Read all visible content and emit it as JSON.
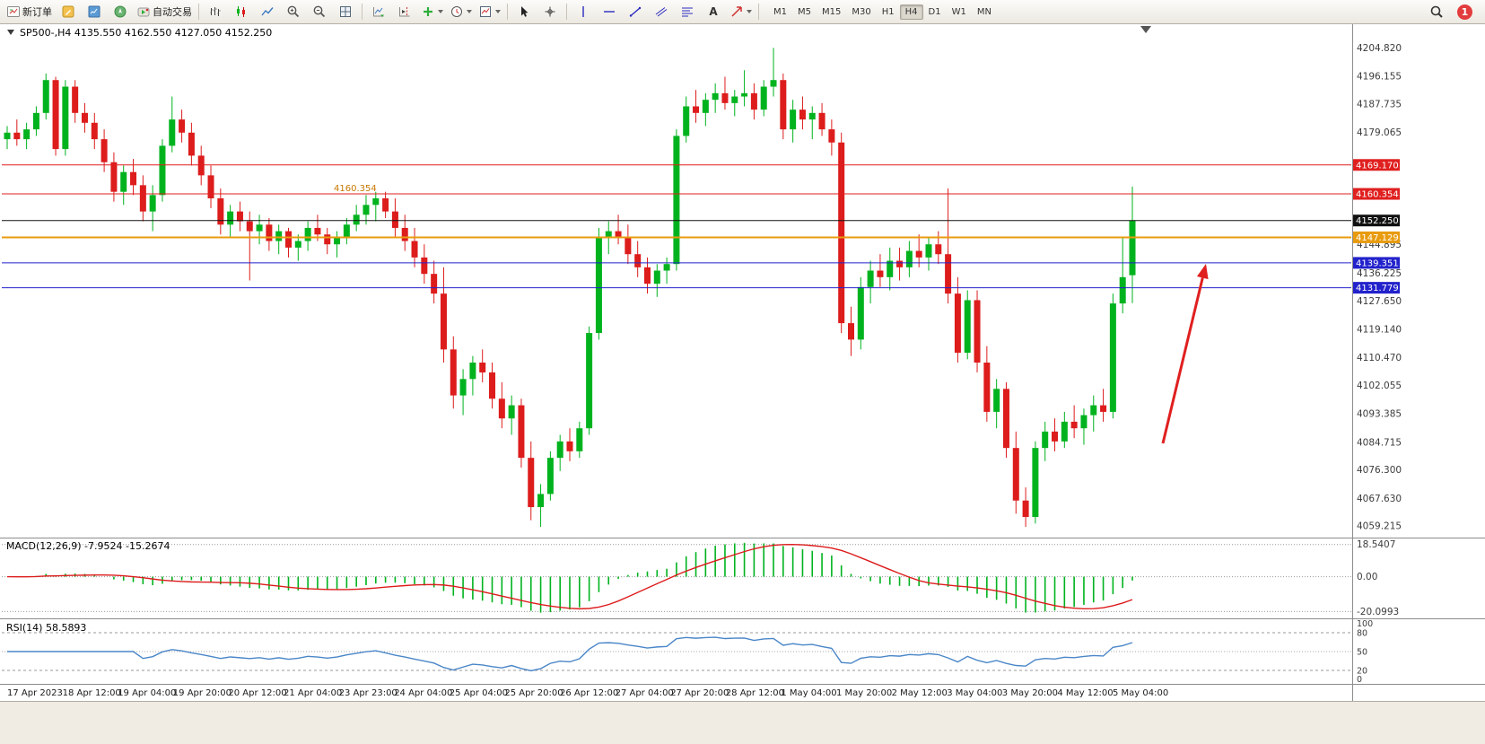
{
  "toolbar": {
    "new_order_label": "新订单",
    "autotrading_label": "自动交易",
    "text_tool_glyph": "A",
    "timeframes": [
      "M1",
      "M5",
      "M15",
      "M30",
      "H1",
      "H4",
      "D1",
      "W1",
      "MN"
    ],
    "active_timeframe": "H4",
    "notification_count": "1",
    "icons": {
      "new-order-icon": "order-ticket",
      "metaeditor-icon": "yellow-editor-square",
      "market-watch-icon": "blue-quotes-square",
      "navigator-icon": "green-compass-circle",
      "autotrading-icon": "green-play",
      "bars-chart-icon": "ohlc-bars",
      "candlestick-chart-icon": "candles",
      "line-chart-icon": "zigzag-line",
      "zoom-in-icon": "magnifier-plus",
      "zoom-out-icon": "magnifier-minus",
      "tile-windows-icon": "window-grid",
      "auto-scroll-icon": "chart-scroll",
      "chart-shift-icon": "chart-shift",
      "indicators-icon": "green-plus",
      "clock-icon": "clock",
      "template-icon": "chart-template",
      "cursor-icon": "pointer-arrow",
      "crosshair-icon": "crosshair",
      "vertical-line-icon": "vline",
      "horizontal-line-icon": "hline",
      "trendline-icon": "diagonal-line",
      "channel-icon": "parallel-lines",
      "fibonacci-icon": "fibo-levels",
      "arrows-icon": "red-arrow",
      "search-icon": "magnifier",
      "chevron-down-icon": "caret-down"
    }
  },
  "chart": {
    "title": "SP500-,H4 4135.550 4162.550 4127.050 4152.250",
    "symbol": "SP500-",
    "period": "H4",
    "open": "4135.550",
    "high": "4162.550",
    "low": "4127.050",
    "close": "4152.250"
  },
  "macd": {
    "label": "MACD(12,26,9) -7.9524 -15.2674",
    "value_main": "-7.9524",
    "value_signal": "-15.2674"
  },
  "rsi": {
    "label": "RSI(14) 58.5893",
    "value": "58.5893"
  },
  "chart_data": {
    "type": "candlestick",
    "symbol": "SP500-",
    "timeframe": "H4",
    "price_range": [
      4056,
      4212
    ],
    "colors": {
      "bull": "#00b31e",
      "bear": "#dd1c1c",
      "macd_hist": "#00b31e",
      "macd_signal": "#dd1c1c",
      "rsi_line": "#4a86c8",
      "axis_text": "#3c3c3c",
      "level_red": "#e01f1f",
      "level_orange": "#e89b0e",
      "level_blue": "#2222cc",
      "current_price_line": "#111111"
    },
    "y_axis_ticks": [
      4204.82,
      4196.155,
      4187.735,
      4179.065,
      4144.895,
      4136.225,
      4127.65,
      4119.14,
      4110.47,
      4102.055,
      4093.385,
      4084.715,
      4076.3,
      4067.63,
      4059.215
    ],
    "hlines": [
      {
        "price": 4169.17,
        "label": "4169.170",
        "color": "#e01f1f",
        "width": 1
      },
      {
        "price": 4160.354,
        "label": "4160.354",
        "color": "#e01f1f",
        "width": 1,
        "chart_label": "4160.354"
      },
      {
        "price": 4152.25,
        "label": "4152.250",
        "color": "#111111",
        "width": 1
      },
      {
        "price": 4147.129,
        "label": "4147.129",
        "color": "#e89b0e",
        "width": 2
      },
      {
        "price": 4139.351,
        "label": "4139.351",
        "color": "#2222cc",
        "width": 1
      },
      {
        "price": 4131.779,
        "label": "4131.779",
        "color": "#2222cc",
        "width": 1
      }
    ],
    "macd_levels": [
      {
        "value": 18.5407,
        "label": "18.5407"
      },
      {
        "value": 0,
        "label": "0.00"
      },
      {
        "value": -20.0993,
        "label": "-20.0993"
      }
    ],
    "rsi_levels": [
      {
        "value": 100,
        "label": "100"
      },
      {
        "value": 80,
        "label": "80"
      },
      {
        "value": 50,
        "label": "50"
      },
      {
        "value": 20,
        "label": "20"
      },
      {
        "value": 0,
        "label": "0"
      }
    ],
    "arrow": {
      "from": [
        1296,
        494
      ],
      "to": [
        1344,
        294
      ],
      "color": "#e01f1f"
    },
    "x_labels": [
      "17 Apr 2023",
      "18 Apr 12:00",
      "19 Apr 04:00",
      "19 Apr 20:00",
      "20 Apr 12:00",
      "21 Apr 04:00",
      "23 Apr 23:00",
      "24 Apr 04:00",
      "25 Apr 04:00",
      "25 Apr 20:00",
      "26 Apr 12:00",
      "27 Apr 04:00",
      "27 Apr 20:00",
      "28 Apr 12:00",
      "1 May 04:00",
      "1 May 20:00",
      "2 May 12:00",
      "3 May 04:00",
      "3 May 20:00",
      "4 May 12:00",
      "5 May 04:00"
    ],
    "candles": [
      [
        4177,
        4181,
        4174,
        4179
      ],
      [
        4179,
        4183,
        4175,
        4177
      ],
      [
        4177,
        4182,
        4174,
        4180
      ],
      [
        4180,
        4187,
        4178,
        4185
      ],
      [
        4185,
        4197,
        4183,
        4195
      ],
      [
        4195,
        4196,
        4172,
        4174
      ],
      [
        4174,
        4195,
        4172,
        4193
      ],
      [
        4193,
        4195,
        4182,
        4185
      ],
      [
        4185,
        4188,
        4179,
        4182
      ],
      [
        4182,
        4185,
        4174,
        4177
      ],
      [
        4177,
        4180,
        4167,
        4170
      ],
      [
        4170,
        4173,
        4158,
        4161
      ],
      [
        4161,
        4169,
        4157,
        4167
      ],
      [
        4167,
        4171,
        4160,
        4163
      ],
      [
        4163,
        4166,
        4152,
        4155
      ],
      [
        4155,
        4163,
        4149,
        4160
      ],
      [
        4160,
        4177,
        4158,
        4175
      ],
      [
        4175,
        4190,
        4173,
        4183
      ],
      [
        4183,
        4186,
        4176,
        4179
      ],
      [
        4179,
        4182,
        4169,
        4172
      ],
      [
        4172,
        4175,
        4163,
        4166
      ],
      [
        4166,
        4169,
        4156,
        4159
      ],
      [
        4159,
        4162,
        4148,
        4151
      ],
      [
        4151,
        4157,
        4147,
        4155
      ],
      [
        4155,
        4158,
        4149,
        4152
      ],
      [
        4152,
        4155,
        4134,
        4149
      ],
      [
        4149,
        4154,
        4145,
        4151
      ],
      [
        4151,
        4153,
        4143,
        4146
      ],
      [
        4146,
        4151,
        4142,
        4149
      ],
      [
        4149,
        4150,
        4141,
        4144
      ],
      [
        4144,
        4148,
        4140,
        4146
      ],
      [
        4146,
        4152,
        4143,
        4150
      ],
      [
        4150,
        4154,
        4146,
        4148
      ],
      [
        4148,
        4150,
        4142,
        4145
      ],
      [
        4145,
        4149,
        4141,
        4147
      ],
      [
        4147,
        4153,
        4145,
        4151
      ],
      [
        4151,
        4157,
        4149,
        4154
      ],
      [
        4154,
        4160,
        4151,
        4157
      ],
      [
        4157,
        4161,
        4152,
        4159
      ],
      [
        4159,
        4161,
        4153,
        4155
      ],
      [
        4155,
        4159,
        4147,
        4150
      ],
      [
        4150,
        4154,
        4143,
        4146
      ],
      [
        4146,
        4150,
        4138,
        4141
      ],
      [
        4141,
        4145,
        4133,
        4136
      ],
      [
        4136,
        4140,
        4127,
        4130
      ],
      [
        4130,
        4138,
        4109,
        4113
      ],
      [
        4113,
        4117,
        4095,
        4099
      ],
      [
        4099,
        4107,
        4093,
        4104
      ],
      [
        4104,
        4111,
        4099,
        4109
      ],
      [
        4109,
        4113,
        4103,
        4106
      ],
      [
        4106,
        4109,
        4095,
        4098
      ],
      [
        4098,
        4103,
        4089,
        4092
      ],
      [
        4092,
        4099,
        4087,
        4096
      ],
      [
        4096,
        4098,
        4077,
        4080
      ],
      [
        4080,
        4085,
        4061,
        4065
      ],
      [
        4065,
        4072,
        4059,
        4069
      ],
      [
        4069,
        4082,
        4067,
        4080
      ],
      [
        4080,
        4087,
        4076,
        4085
      ],
      [
        4085,
        4089,
        4079,
        4082
      ],
      [
        4082,
        4091,
        4080,
        4089
      ],
      [
        4089,
        4120,
        4087,
        4118
      ],
      [
        4118,
        4150,
        4116,
        4147
      ],
      [
        4147,
        4152,
        4142,
        4149
      ],
      [
        4149,
        4154,
        4145,
        4147
      ],
      [
        4147,
        4151,
        4139,
        4142
      ],
      [
        4142,
        4146,
        4135,
        4138
      ],
      [
        4138,
        4141,
        4130,
        4133
      ],
      [
        4133,
        4139,
        4129,
        4137
      ],
      [
        4137,
        4141,
        4133,
        4139
      ],
      [
        4139,
        4180,
        4137,
        4178
      ],
      [
        4178,
        4190,
        4176,
        4187
      ],
      [
        4187,
        4192,
        4182,
        4185
      ],
      [
        4185,
        4191,
        4181,
        4189
      ],
      [
        4189,
        4194,
        4185,
        4191
      ],
      [
        4191,
        4196,
        4186,
        4188
      ],
      [
        4188,
        4192,
        4184,
        4190
      ],
      [
        4190,
        4198,
        4187,
        4191
      ],
      [
        4191,
        4194,
        4183,
        4186
      ],
      [
        4186,
        4195,
        4184,
        4193
      ],
      [
        4193,
        4204.8,
        4190,
        4195
      ],
      [
        4195,
        4197,
        4177,
        4180
      ],
      [
        4180,
        4189,
        4176,
        4186
      ],
      [
        4186,
        4190,
        4180,
        4183
      ],
      [
        4183,
        4187,
        4177,
        4185
      ],
      [
        4185,
        4188,
        4178,
        4180
      ],
      [
        4180,
        4183,
        4172,
        4176
      ],
      [
        4176,
        4179,
        4118,
        4121
      ],
      [
        4121,
        4126,
        4111,
        4116
      ],
      [
        4116,
        4135,
        4113,
        4132
      ],
      [
        4132,
        4140,
        4127,
        4137
      ],
      [
        4137,
        4142,
        4132,
        4135
      ],
      [
        4135,
        4144,
        4131,
        4140
      ],
      [
        4140,
        4144,
        4134,
        4138
      ],
      [
        4138,
        4146,
        4135,
        4143
      ],
      [
        4143,
        4148,
        4138,
        4141
      ],
      [
        4141,
        4147,
        4137,
        4145
      ],
      [
        4145,
        4149,
        4139,
        4142
      ],
      [
        4142,
        4162,
        4127,
        4130
      ],
      [
        4130,
        4135,
        4109,
        4112
      ],
      [
        4112,
        4131,
        4110,
        4128
      ],
      [
        4128,
        4131,
        4106,
        4109
      ],
      [
        4109,
        4114,
        4091,
        4094
      ],
      [
        4094,
        4104,
        4089,
        4101
      ],
      [
        4101,
        4103,
        4080,
        4083
      ],
      [
        4083,
        4088,
        4063,
        4067
      ],
      [
        4067,
        4071,
        4059,
        4062
      ],
      [
        4062,
        4085,
        4060,
        4083
      ],
      [
        4083,
        4091,
        4079,
        4088
      ],
      [
        4088,
        4092,
        4082,
        4085
      ],
      [
        4085,
        4094,
        4083,
        4091
      ],
      [
        4091,
        4096,
        4086,
        4089
      ],
      [
        4089,
        4095,
        4084,
        4093
      ],
      [
        4093,
        4099,
        4088,
        4096
      ],
      [
        4096,
        4101,
        4091,
        4094
      ],
      [
        4094,
        4130,
        4092,
        4127
      ],
      [
        4127,
        4147,
        4124,
        4135
      ],
      [
        4135.6,
        4162.6,
        4127.1,
        4152.3
      ]
    ]
  }
}
